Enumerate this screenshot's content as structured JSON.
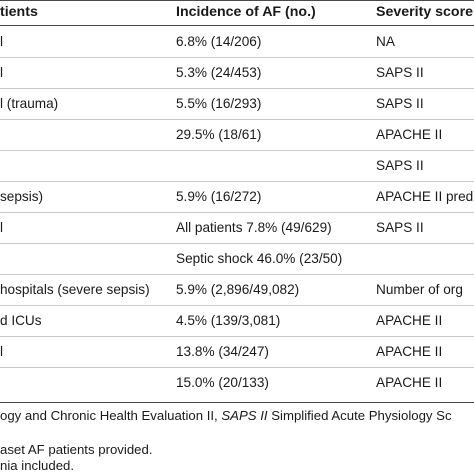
{
  "table": {
    "headers": [
      "tients",
      "Incidence of AF (no.)",
      "Severity score"
    ],
    "rows": [
      {
        "c0": "l",
        "c1": "6.8% (14/206)",
        "c2": "NA"
      },
      {
        "c0": "l",
        "c1": "5.3% (24/453)",
        "c2": "SAPS II"
      },
      {
        "c0": "l (trauma)",
        "c1": "5.5% (16/293)",
        "c2": "SAPS II"
      },
      {
        "c0": "",
        "c1": "29.5% (18/61)",
        "c2": "APACHE II"
      },
      {
        "c0": "",
        "c1": "",
        "c2": "SAPS II"
      },
      {
        "c0": "sepsis)",
        "c1": "5.9% (16/272)",
        "c2": "APACHE II pred"
      },
      {
        "c0": "l",
        "c1": "All patients 7.8% (49/629)",
        "c2": "SAPS II"
      },
      {
        "c0": "",
        "c1": "Septic shock 46.0% (23/50)",
        "c2": ""
      },
      {
        "c0": "hospitals (severe sepsis)",
        "c1": "5.9% (2,896/49,082)",
        "c2": "Number of org"
      },
      {
        "c0": "d ICUs",
        "c1": "4.5% (139/3,081)",
        "c2": "APACHE II"
      },
      {
        "c0": "l",
        "c1": "13.8% (34/247)",
        "c2": "APACHE II"
      },
      {
        "c0": "",
        "c1": "15.0% (20/133)",
        "c2": "APACHE II"
      }
    ]
  },
  "footnotes": {
    "abbrev_pre": "ogy and Chronic Health Evaluation II, ",
    "abbrev_italic": "SAPS II",
    "abbrev_post": " Simplified Acute Physiology Sc",
    "note_a": "aset AF patients provided.",
    "note_b": "nia included."
  }
}
